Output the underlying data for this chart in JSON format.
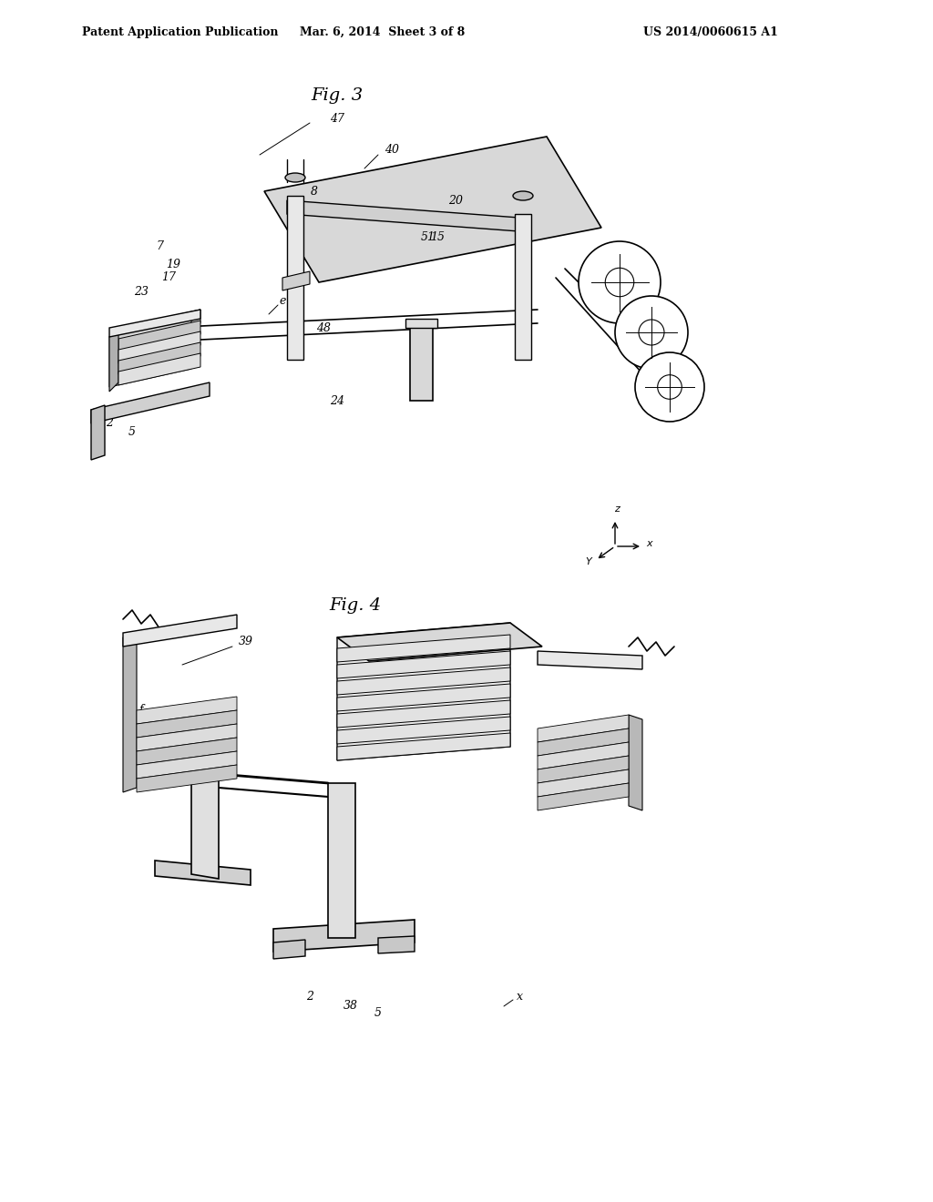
{
  "background_color": "#ffffff",
  "header_left": "Patent Application Publication",
  "header_mid": "Mar. 6, 2014  Sheet 3 of 8",
  "header_right": "US 2014/0060615 A1",
  "fig3_title": "Fig. 3",
  "fig4_title": "Fig. 4",
  "header_fontsize": 9,
  "title_fontsize": 14
}
